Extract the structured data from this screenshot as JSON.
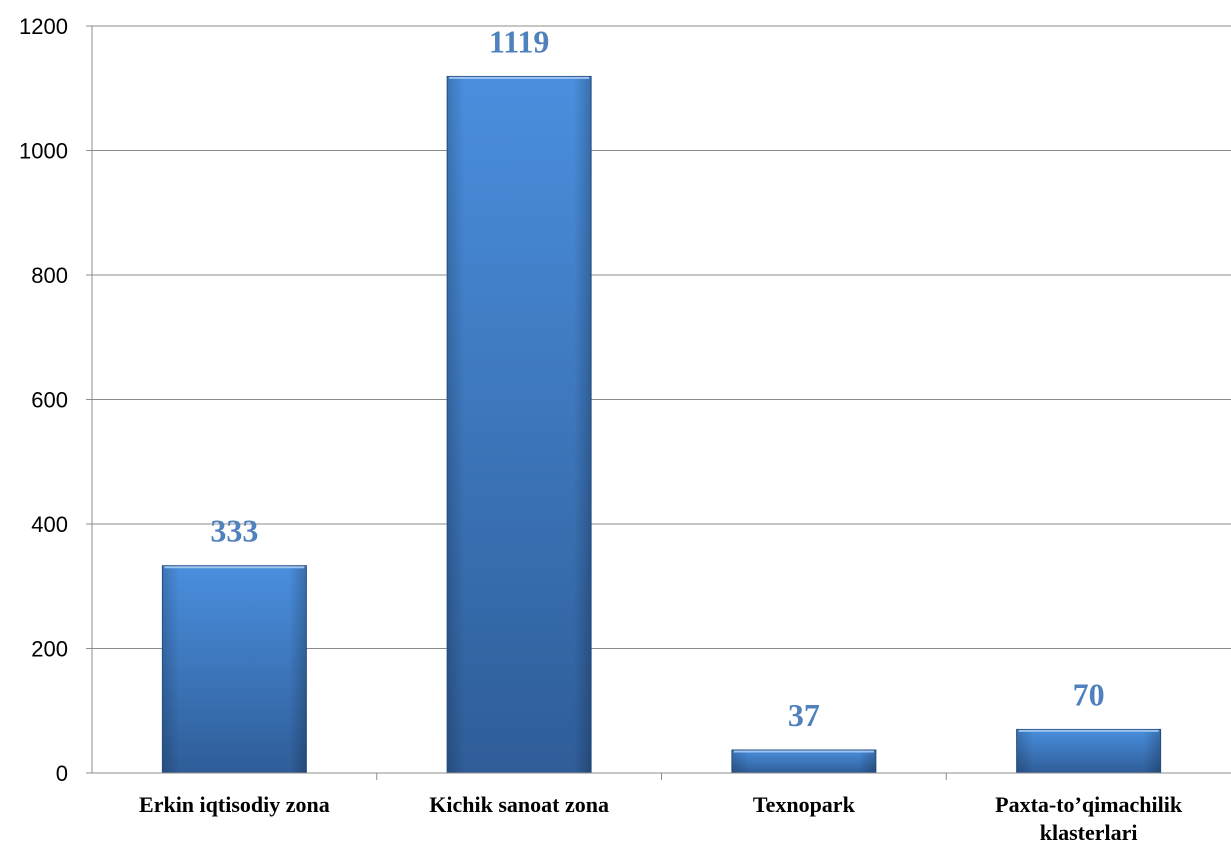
{
  "chart_data": {
    "type": "bar",
    "title": "",
    "xlabel": "",
    "ylabel": "",
    "categories": [
      [
        "Erkin iqtisodiy zona"
      ],
      [
        "Kichik sanoat zona"
      ],
      [
        "Texnopark"
      ],
      [
        "Paxta-to’qimachilik",
        "klasterlari"
      ]
    ],
    "values": [
      333,
      1119,
      37,
      70
    ],
    "data_labels": [
      "333",
      "1119",
      "37",
      "70"
    ],
    "ylim": [
      0,
      1200
    ],
    "yticks": [
      0,
      200,
      400,
      600,
      800,
      1000,
      1200
    ],
    "ytick_labels": [
      "0",
      "200",
      "400",
      "600",
      "800",
      "1000",
      "1200"
    ],
    "grid": true,
    "legend": "none",
    "colors": {
      "bar_light": "#4a8fde",
      "bar_dark": "#2f5d98",
      "data_label": "#4f81bd",
      "grid": "#8c8c8c"
    }
  }
}
